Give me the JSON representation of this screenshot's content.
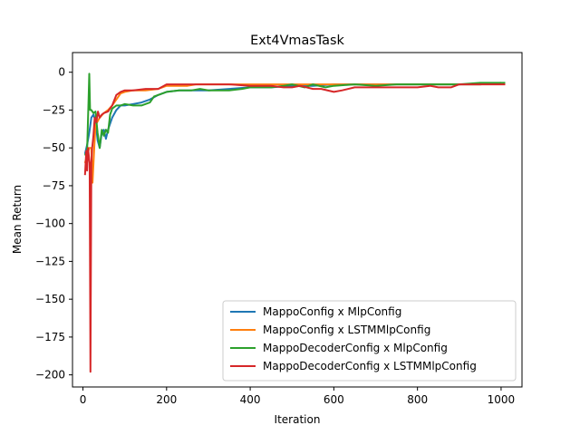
{
  "chart_data": {
    "type": "line",
    "title": "Ext4VmasTask",
    "xlabel": "Iteration",
    "ylabel": "Mean Return",
    "xlim": [
      -25,
      1050
    ],
    "ylim": [
      -208,
      13
    ],
    "xticks": [
      0,
      200,
      400,
      600,
      800,
      1000
    ],
    "yticks": [
      0,
      -25,
      -50,
      -75,
      -100,
      -125,
      -150,
      -175,
      -200
    ],
    "legend_position": "lower-right",
    "series": [
      {
        "name": "MappoConfig x MlpConfig",
        "color": "#1f77b4",
        "points": [
          [
            5,
            -54
          ],
          [
            10,
            -48
          ],
          [
            15,
            -40
          ],
          [
            20,
            -30
          ],
          [
            25,
            -28
          ],
          [
            30,
            -32
          ],
          [
            35,
            -45
          ],
          [
            40,
            -50
          ],
          [
            45,
            -40
          ],
          [
            50,
            -38
          ],
          [
            55,
            -44
          ],
          [
            60,
            -38
          ],
          [
            70,
            -30
          ],
          [
            80,
            -25
          ],
          [
            90,
            -22
          ],
          [
            100,
            -22
          ],
          [
            120,
            -21
          ],
          [
            140,
            -20
          ],
          [
            160,
            -18
          ],
          [
            180,
            -15
          ],
          [
            200,
            -13
          ],
          [
            230,
            -12
          ],
          [
            260,
            -12
          ],
          [
            300,
            -12
          ],
          [
            350,
            -11
          ],
          [
            400,
            -10
          ],
          [
            450,
            -10
          ],
          [
            500,
            -9
          ],
          [
            550,
            -9
          ],
          [
            600,
            -8
          ],
          [
            650,
            -8
          ],
          [
            700,
            -8
          ],
          [
            750,
            -8
          ],
          [
            800,
            -8
          ],
          [
            850,
            -8
          ],
          [
            900,
            -8
          ],
          [
            950,
            -8
          ],
          [
            1000,
            -7
          ]
        ]
      },
      {
        "name": "MappoConfig x LSTMMlpConfig",
        "color": "#ff7f0e",
        "points": [
          [
            5,
            -60
          ],
          [
            10,
            -55
          ],
          [
            15,
            -50
          ],
          [
            20,
            -50
          ],
          [
            23,
            -73
          ],
          [
            27,
            -50
          ],
          [
            30,
            -35
          ],
          [
            40,
            -30
          ],
          [
            50,
            -27
          ],
          [
            60,
            -25
          ],
          [
            70,
            -22
          ],
          [
            80,
            -18
          ],
          [
            90,
            -14
          ],
          [
            100,
            -13
          ],
          [
            120,
            -12
          ],
          [
            150,
            -12
          ],
          [
            180,
            -11
          ],
          [
            200,
            -9
          ],
          [
            230,
            -9
          ],
          [
            250,
            -9
          ],
          [
            270,
            -8
          ],
          [
            300,
            -8
          ],
          [
            350,
            -8
          ],
          [
            400,
            -8
          ],
          [
            450,
            -8
          ],
          [
            500,
            -8
          ],
          [
            550,
            -8
          ],
          [
            600,
            -8
          ],
          [
            650,
            -8
          ],
          [
            700,
            -8
          ],
          [
            750,
            -8
          ],
          [
            800,
            -8
          ],
          [
            850,
            -8
          ],
          [
            900,
            -8
          ],
          [
            950,
            -8
          ],
          [
            1000,
            -7
          ]
        ]
      },
      {
        "name": "MappoDecoderConfig x MlpConfig",
        "color": "#2ca02c",
        "points": [
          [
            5,
            -55
          ],
          [
            10,
            -52
          ],
          [
            13,
            -23
          ],
          [
            15,
            -1
          ],
          [
            17,
            -25
          ],
          [
            20,
            -25
          ],
          [
            25,
            -27
          ],
          [
            30,
            -26
          ],
          [
            35,
            -40
          ],
          [
            40,
            -50
          ],
          [
            45,
            -38
          ],
          [
            50,
            -42
          ],
          [
            55,
            -38
          ],
          [
            60,
            -40
          ],
          [
            65,
            -28
          ],
          [
            70,
            -24
          ],
          [
            80,
            -22
          ],
          [
            90,
            -22
          ],
          [
            100,
            -21
          ],
          [
            120,
            -22
          ],
          [
            140,
            -22
          ],
          [
            160,
            -20
          ],
          [
            170,
            -16
          ],
          [
            180,
            -15
          ],
          [
            200,
            -13
          ],
          [
            230,
            -12
          ],
          [
            260,
            -12
          ],
          [
            280,
            -11
          ],
          [
            300,
            -12
          ],
          [
            320,
            -12
          ],
          [
            350,
            -12
          ],
          [
            380,
            -11
          ],
          [
            400,
            -10
          ],
          [
            420,
            -10
          ],
          [
            450,
            -10
          ],
          [
            480,
            -9
          ],
          [
            500,
            -8
          ],
          [
            530,
            -10
          ],
          [
            550,
            -8
          ],
          [
            580,
            -10
          ],
          [
            600,
            -9
          ],
          [
            650,
            -8
          ],
          [
            700,
            -9
          ],
          [
            750,
            -8
          ],
          [
            800,
            -8
          ],
          [
            850,
            -8
          ],
          [
            900,
            -8
          ],
          [
            950,
            -7
          ],
          [
            1000,
            -7
          ],
          [
            1010,
            -7
          ]
        ]
      },
      {
        "name": "MappoDecoderConfig x LSTMMlpConfig",
        "color": "#d62728",
        "points": [
          [
            5,
            -68
          ],
          [
            8,
            -52
          ],
          [
            10,
            -65
          ],
          [
            12,
            -50
          ],
          [
            14,
            -55
          ],
          [
            16,
            -60
          ],
          [
            18,
            -198
          ],
          [
            20,
            -60
          ],
          [
            22,
            -50
          ],
          [
            25,
            -42
          ],
          [
            28,
            -30
          ],
          [
            32,
            -33
          ],
          [
            36,
            -26
          ],
          [
            40,
            -30
          ],
          [
            45,
            -28
          ],
          [
            50,
            -27
          ],
          [
            60,
            -26
          ],
          [
            70,
            -22
          ],
          [
            80,
            -15
          ],
          [
            90,
            -13
          ],
          [
            100,
            -12
          ],
          [
            120,
            -12
          ],
          [
            150,
            -11
          ],
          [
            180,
            -11
          ],
          [
            200,
            -8
          ],
          [
            250,
            -8
          ],
          [
            300,
            -8
          ],
          [
            350,
            -8
          ],
          [
            400,
            -9
          ],
          [
            450,
            -9
          ],
          [
            480,
            -10
          ],
          [
            500,
            -10
          ],
          [
            520,
            -9
          ],
          [
            550,
            -11
          ],
          [
            570,
            -11
          ],
          [
            600,
            -13
          ],
          [
            620,
            -12
          ],
          [
            650,
            -10
          ],
          [
            700,
            -10
          ],
          [
            750,
            -10
          ],
          [
            800,
            -10
          ],
          [
            830,
            -9
          ],
          [
            850,
            -10
          ],
          [
            880,
            -10
          ],
          [
            900,
            -8
          ],
          [
            950,
            -8
          ],
          [
            1000,
            -8
          ],
          [
            1010,
            -8
          ]
        ]
      }
    ]
  }
}
